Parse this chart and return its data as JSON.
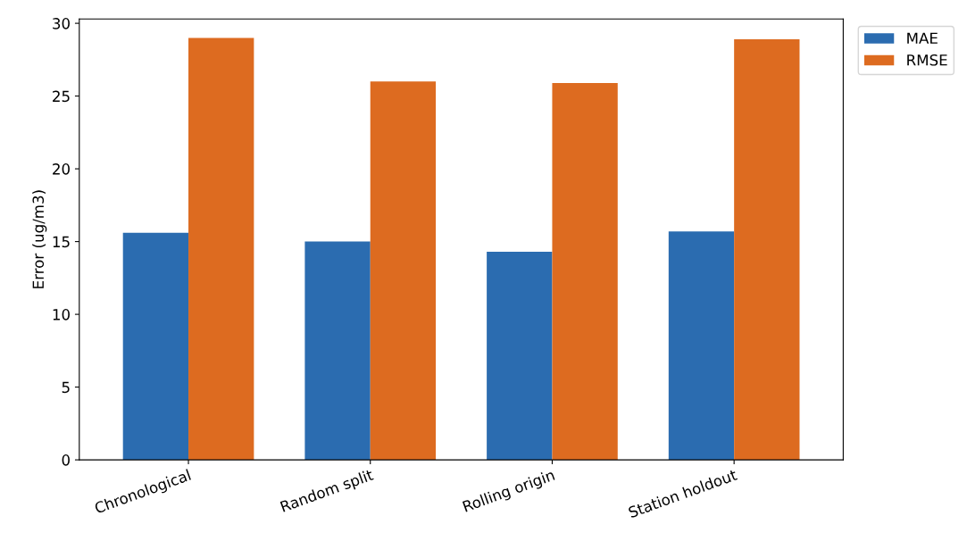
{
  "chart_data": {
    "type": "bar",
    "ylabel": "Error (ug/m3)",
    "categories": [
      "Chronological",
      "Random split",
      "Rolling origin",
      "Station holdout"
    ],
    "series": [
      {
        "name": "MAE",
        "color": "#2b6cb0",
        "values": [
          15.6,
          15.0,
          14.3,
          15.7
        ]
      },
      {
        "name": "RMSE",
        "color": "#dd6b20",
        "values": [
          29.0,
          26.0,
          25.9,
          28.9
        ]
      }
    ],
    "ylim": [
      0,
      30.3
    ],
    "yticks": [
      0,
      5,
      10,
      15,
      20,
      25,
      30
    ],
    "grid": false,
    "legend": "top right"
  }
}
